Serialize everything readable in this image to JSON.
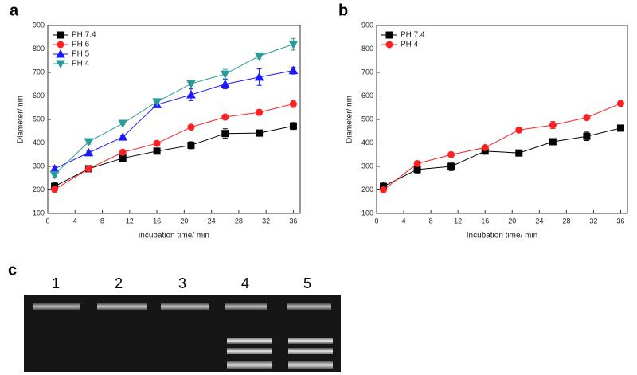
{
  "chart_data": [
    {
      "type": "line",
      "panel_label": "a",
      "x_label": "incubation time/ min",
      "y_label": "Diameter/ nm",
      "x": [
        1,
        6,
        11,
        16,
        21,
        26,
        31,
        36
      ],
      "series": [
        {
          "name": "PH 7.4",
          "color": "#000000",
          "marker": "square",
          "values": [
            215,
            290,
            335,
            365,
            390,
            440,
            442,
            472
          ],
          "errors": [
            15,
            5,
            8,
            10,
            15,
            20,
            5,
            15
          ]
        },
        {
          "name": "PH 6",
          "color": "#ff2020",
          "marker": "circle",
          "values": [
            202,
            290,
            360,
            398,
            467,
            510,
            530,
            566
          ],
          "errors": [
            10,
            5,
            10,
            10,
            5,
            5,
            12,
            15
          ]
        },
        {
          "name": "PH 5",
          "color": "#1a1aff",
          "marker": "triangle-up",
          "values": [
            290,
            358,
            425,
            563,
            605,
            650,
            680,
            708
          ],
          "errors": [
            8,
            10,
            5,
            10,
            25,
            20,
            35,
            15
          ]
        },
        {
          "name": "PH 4",
          "color": "#2a9a9a",
          "marker": "triangle-down",
          "values": [
            265,
            405,
            483,
            575,
            652,
            693,
            770,
            820
          ],
          "errors": [
            10,
            10,
            5,
            5,
            8,
            20,
            12,
            25
          ]
        }
      ],
      "xlim": [
        0,
        37
      ],
      "xticks": [
        0,
        4,
        8,
        12,
        16,
        20,
        24,
        28,
        32,
        36
      ],
      "ylim": [
        100,
        900
      ],
      "yticks": [
        100,
        200,
        300,
        400,
        500,
        600,
        700,
        800,
        900
      ],
      "legend": "upper left"
    },
    {
      "type": "line",
      "panel_label": "b",
      "x_label": "Incubation time/ min",
      "y_label": "Diameter/ nm",
      "x": [
        1,
        6,
        11,
        16,
        21,
        26,
        31,
        36
      ],
      "series": [
        {
          "name": "PH 7.4",
          "color": "#000000",
          "marker": "square",
          "values": [
            215,
            287,
            300,
            365,
            357,
            405,
            428,
            463
          ],
          "errors": [
            18,
            15,
            18,
            5,
            5,
            10,
            18,
            8
          ]
        },
        {
          "name": "PH 4",
          "color": "#ff2020",
          "marker": "circle",
          "values": [
            200,
            312,
            350,
            380,
            455,
            476,
            508,
            568
          ],
          "errors": [
            10,
            5,
            5,
            5,
            5,
            15,
            5,
            5
          ]
        }
      ],
      "xlim": [
        0,
        37
      ],
      "xticks": [
        0,
        4,
        8,
        12,
        16,
        20,
        24,
        28,
        32,
        36
      ],
      "ylim": [
        100,
        900
      ],
      "yticks": [
        100,
        200,
        300,
        400,
        500,
        600,
        700,
        800,
        900
      ],
      "legend": "upper left"
    }
  ],
  "gel": {
    "panel_label": "c",
    "lanes": [
      "1",
      "2",
      "3",
      "4",
      "5"
    ]
  }
}
